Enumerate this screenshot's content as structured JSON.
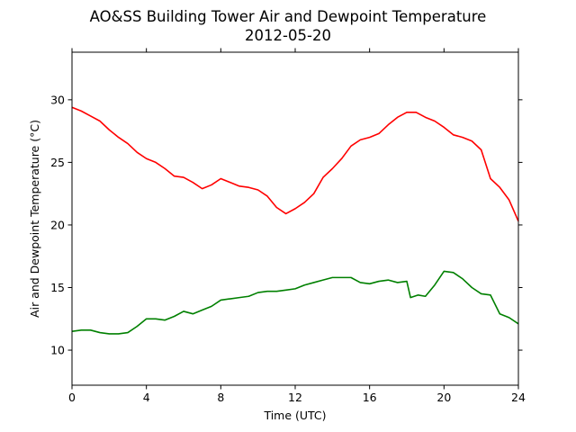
{
  "chart_data": {
    "type": "line",
    "title": "AO&SS Building Tower Air and Dewpoint Temperature",
    "subtitle": "2012-05-20",
    "xlabel": "Time (UTC)",
    "ylabel": "Air and Dewpoint Temperature (°C)",
    "xlim": [
      0,
      24
    ],
    "ylim": [
      7.2,
      33.8
    ],
    "xticks": [
      0,
      4,
      8,
      12,
      16,
      20,
      24
    ],
    "yticks": [
      10,
      15,
      20,
      25,
      30
    ],
    "grid": false,
    "legend": "none",
    "series": [
      {
        "color": "#ff0000",
        "x": [
          0,
          0.5,
          1,
          1.5,
          2,
          2.5,
          3,
          3.5,
          4,
          4.5,
          5,
          5.5,
          6,
          6.5,
          7,
          7.5,
          8,
          8.5,
          9,
          9.5,
          10,
          10.5,
          11,
          11.5,
          12,
          12.5,
          13,
          13.5,
          14,
          14.5,
          15,
          15.5,
          16,
          16.5,
          17,
          17.5,
          18,
          18.5,
          19,
          19.5,
          20,
          20.5,
          21,
          21.5,
          22,
          22.5,
          23,
          23.5,
          24
        ],
        "y": [
          29.4,
          29.1,
          28.7,
          28.3,
          27.6,
          27.0,
          26.5,
          25.8,
          25.3,
          25.0,
          24.5,
          23.9,
          23.8,
          23.4,
          22.9,
          23.2,
          23.7,
          23.4,
          23.1,
          23.0,
          22.8,
          22.3,
          21.4,
          20.9,
          21.3,
          21.8,
          22.5,
          23.8,
          24.5,
          25.3,
          26.3,
          26.8,
          27.0,
          27.3,
          28.0,
          28.6,
          29.0,
          29.0,
          28.6,
          28.3,
          27.8,
          27.2,
          27.0,
          26.7,
          26.0,
          23.7,
          23.0,
          22.0,
          20.3
        ]
      },
      {
        "color": "#008000",
        "x": [
          0,
          0.5,
          1,
          1.5,
          2,
          2.5,
          3,
          3.5,
          4,
          4.5,
          5,
          5.5,
          6,
          6.5,
          7,
          7.5,
          8,
          8.5,
          9,
          9.5,
          10,
          10.5,
          11,
          11.5,
          12,
          12.5,
          13,
          13.5,
          14,
          14.5,
          15,
          15.5,
          16,
          16.5,
          17,
          17.5,
          18,
          18.2,
          18.6,
          19,
          19.5,
          20,
          20.5,
          21,
          21.5,
          22,
          22.5,
          23,
          23.5,
          24
        ],
        "y": [
          11.5,
          11.6,
          11.6,
          11.4,
          11.3,
          11.3,
          11.4,
          11.9,
          12.5,
          12.5,
          12.4,
          12.7,
          13.1,
          12.9,
          13.2,
          13.5,
          14.0,
          14.1,
          14.2,
          14.3,
          14.6,
          14.7,
          14.7,
          14.8,
          14.9,
          15.2,
          15.4,
          15.6,
          15.8,
          15.8,
          15.8,
          15.4,
          15.3,
          15.5,
          15.6,
          15.4,
          15.5,
          14.2,
          14.4,
          14.3,
          15.2,
          16.3,
          16.2,
          15.7,
          15.0,
          14.5,
          14.4,
          12.9,
          12.6,
          12.1
        ]
      }
    ]
  }
}
